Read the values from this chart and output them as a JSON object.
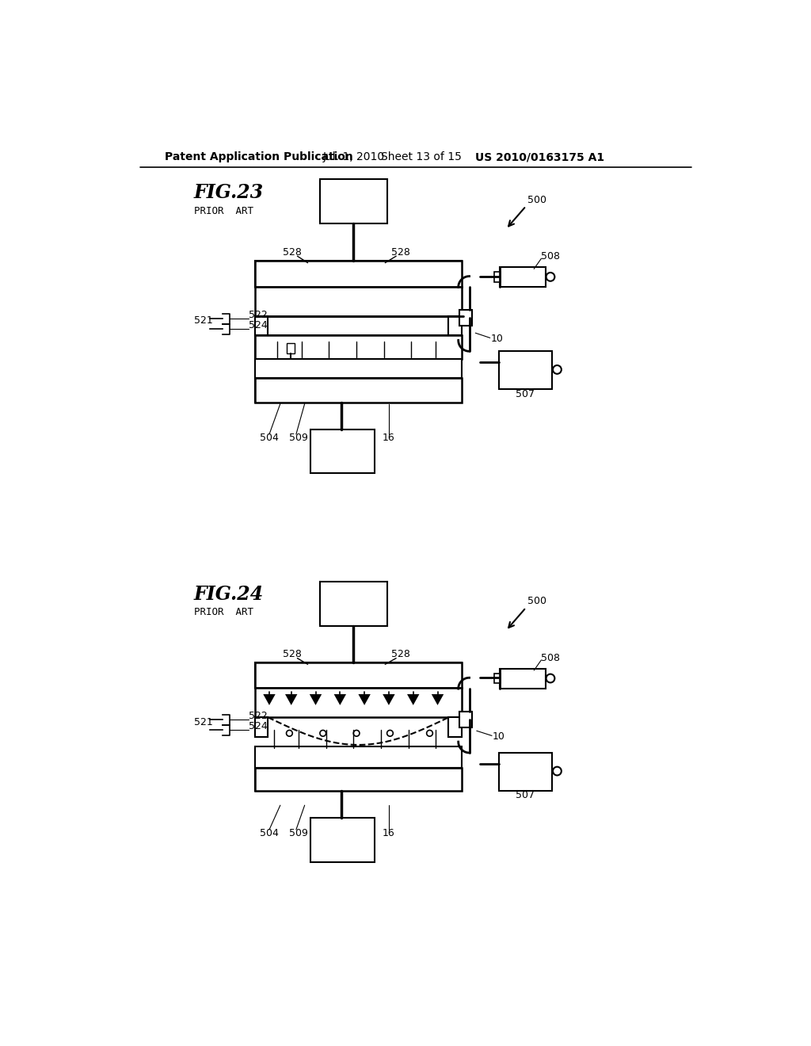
{
  "bg_color": "#ffffff",
  "header_text": "Patent Application Publication",
  "header_date": "Jul. 1, 2010",
  "header_sheet": "Sheet 13 of 15",
  "header_patent": "US 2010/0163175 A1",
  "fig23_title": "FIG.23",
  "fig23_subtitle": "PRIOR  ART",
  "fig24_title": "FIG.24",
  "fig24_subtitle": "PRIOR  ART"
}
